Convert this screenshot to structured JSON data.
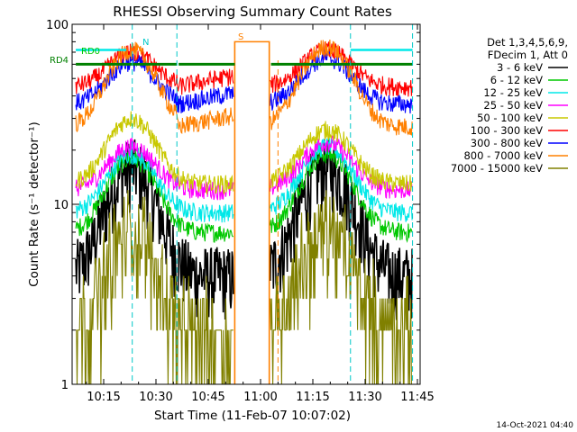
{
  "chart_data": {
    "type": "line",
    "title": "RHESSI Observing Summary Count Rates",
    "xlabel": "Start Time (11-Feb-07 10:07:02)",
    "ylabel": "Count Rate (s⁻¹ detector⁻¹)",
    "yscale": "log",
    "ylim": [
      1,
      100
    ],
    "xlim_minutes": [
      7.0,
      46.7
    ],
    "x_tick_labels": [
      {
        "minute": 15,
        "label": "10:15"
      },
      {
        "minute": 30,
        "label": "10:30"
      },
      {
        "minute": 45,
        "label": "10:45"
      },
      {
        "minute": 60,
        "label": "11:00"
      },
      {
        "minute": 75,
        "label": "11:15"
      },
      {
        "minute": 90,
        "label": "11:30"
      },
      {
        "minute": 105,
        "label": "11:45"
      }
    ],
    "y_tick_labels": [
      {
        "value": 1,
        "label": "1"
      },
      {
        "value": 10,
        "label": "10"
      },
      {
        "value": 100,
        "label": "100"
      }
    ],
    "legend_header": [
      "Det 1,3,4,5,6,9,",
      "FDecim 1, Att 0"
    ],
    "series": [
      {
        "name": "3 - 6 keV",
        "color": "#000000",
        "base": 4.0,
        "peak": 16,
        "orbit2_peak": 16
      },
      {
        "name": "6 - 12 keV",
        "color": "#00c800",
        "base": 7.0,
        "peak": 18,
        "orbit2_peak": 19
      },
      {
        "name": "12 - 25 keV",
        "color": "#00e8e8",
        "base": 9.0,
        "peak": 19,
        "orbit2_peak": 21
      },
      {
        "name": "25 - 50 keV",
        "color": "#ff00ff",
        "base": 12.0,
        "peak": 21,
        "orbit2_peak": 22
      },
      {
        "name": "50 - 100 keV",
        "color": "#c8c800",
        "base": 13.0,
        "peak": 30,
        "orbit2_peak": 26
      },
      {
        "name": "100 - 300 keV",
        "color": "#ff0000",
        "base": 45,
        "peak": 70,
        "orbit2_peak": 72
      },
      {
        "name": "300 - 800 keV",
        "color": "#0000ff",
        "base": 36,
        "peak": 62,
        "orbit2_peak": 65
      },
      {
        "name": "800 - 7000 keV",
        "color": "#ff8000",
        "base": 27,
        "peak": 72,
        "orbit2_peak": 75
      },
      {
        "name": "7000 - 15000 keV",
        "color": "#808000",
        "base": 2.0,
        "peak": 7,
        "orbit2_peak": 7
      }
    ],
    "annotations": [
      {
        "label": "RD0",
        "color": "#00c800"
      },
      {
        "label": "RD4",
        "color": "#008000"
      },
      {
        "label": "N",
        "color": "#00c8c8"
      },
      {
        "label": "S",
        "color": "#ff8000"
      }
    ],
    "flags": {
      "green_flag_level": 60,
      "cyan_flag_level": 72,
      "orange_saa_level": 80,
      "saa_start_minute": 52.6,
      "saa_end_minute": 62.5,
      "vertical_markers_minutes": [
        23.2,
        36.0,
        52.6,
        62.5,
        85.8,
        103.6
      ]
    },
    "footer_timestamp": "14-Oct-2021 04:40",
    "grid": false,
    "legend_position": "right"
  }
}
